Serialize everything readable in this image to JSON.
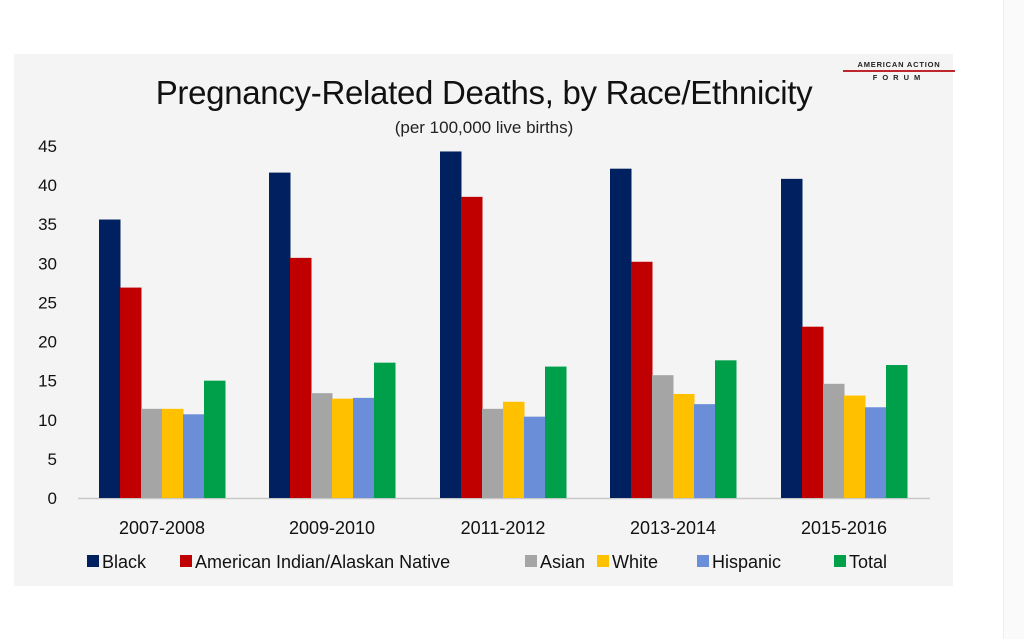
{
  "logo": {
    "line1": "AMERICAN ACTION",
    "line2": "FORUM",
    "accent": "#c0272d"
  },
  "chart_data": {
    "type": "bar",
    "title": "Pregnancy-Related Deaths, by Race/Ethnicity",
    "subtitle": "(per 100,000 live births)",
    "xlabel": "",
    "ylabel": "",
    "ylim": [
      0,
      45
    ],
    "yticks": [
      0,
      5,
      10,
      15,
      20,
      25,
      30,
      35,
      40,
      45
    ],
    "grid": false,
    "legend_position": "bottom",
    "categories": [
      "2007-2008",
      "2009-2010",
      "2011-2012",
      "2013-2014",
      "2015-2016"
    ],
    "series": [
      {
        "name": "Black",
        "color": "#002060",
        "values": [
          35.6,
          41.6,
          44.3,
          42.1,
          40.8
        ]
      },
      {
        "name": "American Indian/Alaskan Native",
        "color": "#c00000",
        "values": [
          26.9,
          30.7,
          38.5,
          30.2,
          21.9
        ]
      },
      {
        "name": "Asian",
        "color": "#a5a5a5",
        "values": [
          11.4,
          13.4,
          11.4,
          15.7,
          14.6
        ]
      },
      {
        "name": "White",
        "color": "#ffc000",
        "values": [
          11.4,
          12.7,
          12.3,
          13.3,
          13.1
        ]
      },
      {
        "name": "Hispanic",
        "color": "#6a8fd8",
        "values": [
          10.7,
          12.8,
          10.4,
          12.0,
          11.6
        ]
      },
      {
        "name": "Total",
        "color": "#00a04a",
        "values": [
          15.0,
          17.3,
          16.8,
          17.6,
          17.0
        ]
      }
    ]
  }
}
